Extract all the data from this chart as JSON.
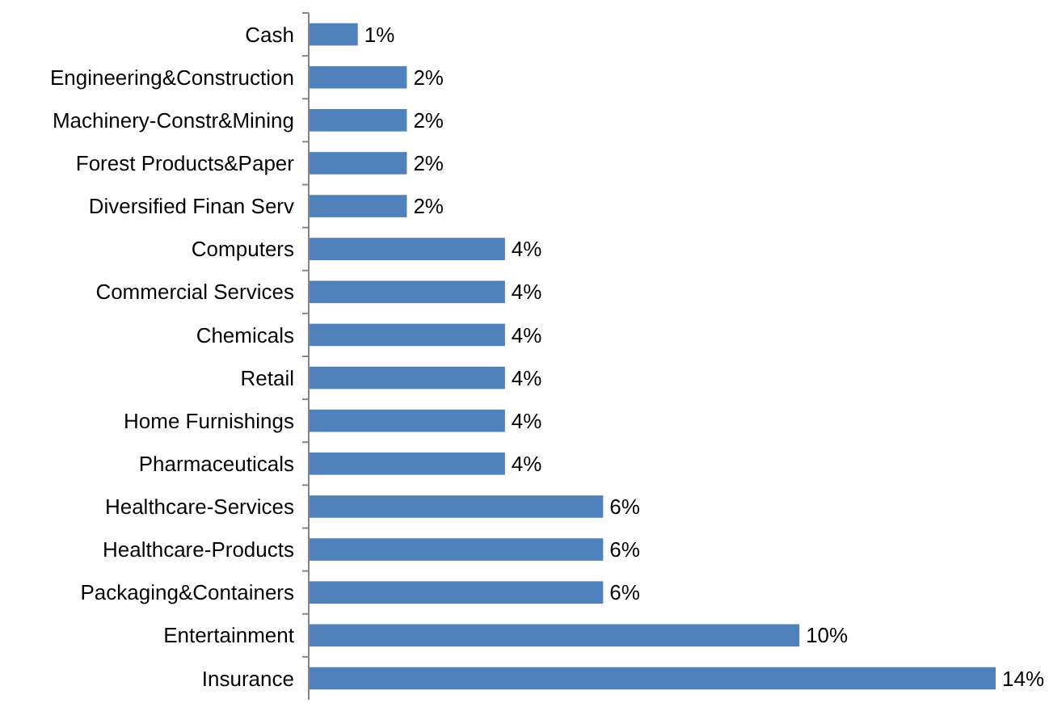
{
  "chart_data": {
    "type": "bar",
    "orientation": "horizontal",
    "categories": [
      "Cash",
      "Engineering&Construction",
      "Machinery-Constr&Mining",
      "Forest Products&Paper",
      "Diversified Finan Serv",
      "Computers",
      "Commercial Services",
      "Chemicals",
      "Retail",
      "Home Furnishings",
      "Pharmaceuticals",
      "Healthcare-Services",
      "Healthcare-Products",
      "Packaging&Containers",
      "Entertainment",
      "Insurance"
    ],
    "values": [
      1,
      2,
      2,
      2,
      2,
      4,
      4,
      4,
      4,
      4,
      4,
      6,
      6,
      6,
      10,
      14
    ],
    "value_labels": [
      "1%",
      "2%",
      "2%",
      "2%",
      "2%",
      "4%",
      "4%",
      "4%",
      "4%",
      "4%",
      "4%",
      "6%",
      "6%",
      "6%",
      "10%",
      "14%"
    ],
    "color": "#4f81bd"
  }
}
